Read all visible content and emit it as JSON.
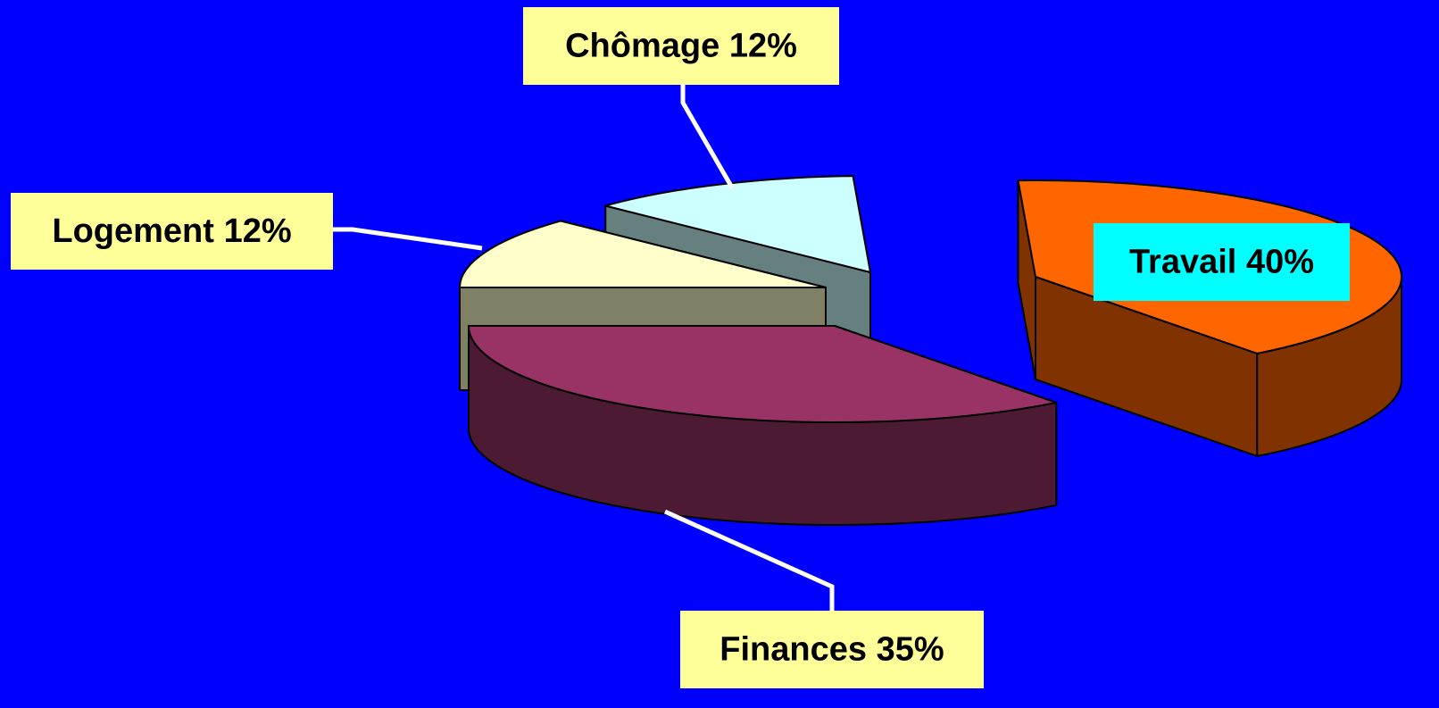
{
  "chart_data": {
    "type": "pie3d",
    "categories": [
      "Finances",
      "Travail",
      "Chômage",
      "Logement"
    ],
    "values": [
      35,
      40,
      12,
      12
    ],
    "value_labels": [
      "35%",
      "40%",
      "12%",
      "12%"
    ],
    "colors": [
      "#993366",
      "#ff6600",
      "#ccffff",
      "#ffffcc"
    ]
  }
}
